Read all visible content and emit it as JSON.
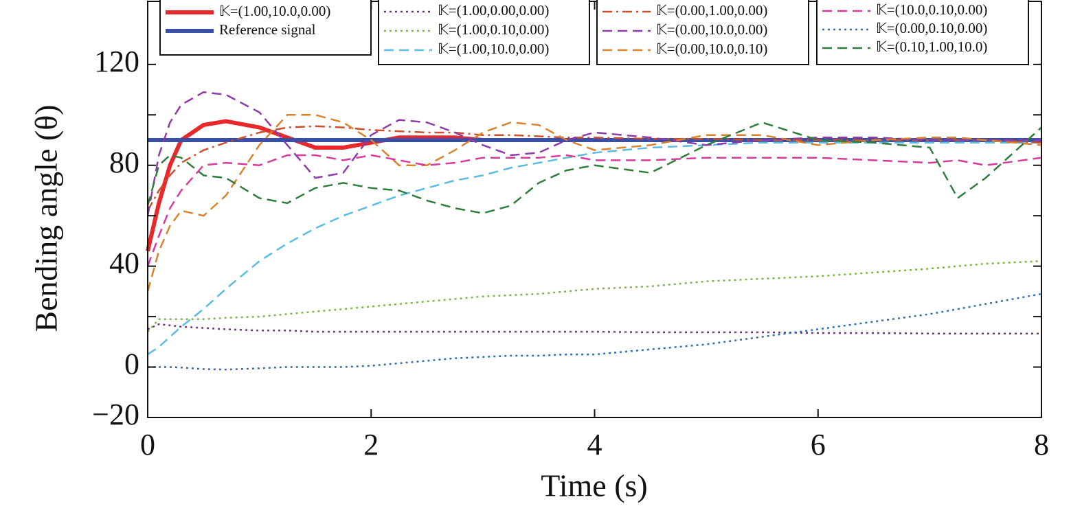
{
  "chart_data": {
    "type": "line",
    "xlabel": "Time (s)",
    "ylabel": "Bending angle (θ)",
    "xlim": [
      0,
      8
    ],
    "ylim": [
      -20,
      145
    ],
    "xticks": [
      0,
      2,
      4,
      6,
      8
    ],
    "yticks": [
      {
        "value": -20,
        "label": "−20"
      },
      0,
      40,
      80,
      120
    ],
    "yminor_ticks": [
      20,
      60,
      100
    ],
    "x": [
      0,
      0.1,
      0.2,
      0.3,
      0.5,
      0.7,
      1,
      1.25,
      1.5,
      1.75,
      2,
      2.25,
      2.5,
      2.75,
      3,
      3.25,
      3.5,
      3.75,
      4,
      4.5,
      5,
      5.5,
      6,
      6.5,
      7,
      7.25,
      7.5,
      8
    ],
    "series": [
      {
        "name": "𝕂=(1.00,10.0,0.00)",
        "color": "#e8282b",
        "style": "solid",
        "linewidth": 6,
        "values": [
          46,
          65,
          80,
          90,
          96,
          97.5,
          95,
          91,
          87,
          87,
          89,
          91,
          91,
          91,
          90,
          90,
          90,
          90,
          90,
          90,
          90,
          90,
          90,
          90,
          90,
          90,
          90,
          90
        ]
      },
      {
        "name": "Reference signal",
        "color": "#3a4fa8",
        "style": "solid",
        "linewidth": 6,
        "values": [
          90,
          90,
          90,
          90,
          90,
          90,
          90,
          90,
          90,
          90,
          90,
          90,
          90,
          90,
          90,
          90,
          90,
          90,
          90,
          90,
          90,
          90,
          90,
          90,
          90,
          90,
          90,
          90
        ]
      },
      {
        "name": "𝕂=(1.00,0.00,0.00)",
        "color": "#7b2d8e",
        "style": "dotted",
        "linewidth": 2.5,
        "values": [
          15,
          17,
          16.5,
          16,
          15.5,
          15,
          14.5,
          14.5,
          14,
          14,
          14,
          14,
          14,
          14,
          14,
          14,
          14,
          14,
          14,
          13.8,
          13.8,
          13.8,
          13.5,
          13.5,
          13.3,
          13.3,
          13.3,
          13.3
        ]
      },
      {
        "name": "𝕂=(1.00,0.10,0.00)",
        "color": "#7ab648",
        "style": "dotted",
        "linewidth": 2.5,
        "values": [
          14,
          19,
          19,
          19,
          19,
          19.5,
          20,
          21,
          22,
          23,
          24,
          25,
          26,
          27,
          28,
          28.5,
          29,
          30,
          31,
          32,
          34,
          35,
          36,
          37.5,
          39,
          40,
          41,
          42
        ]
      },
      {
        "name": "𝕂=(1.00,10.0,0.00)",
        "color": "#5bbbe0",
        "style": "dashed",
        "linewidth": 2.5,
        "values": [
          5,
          8,
          12,
          16,
          23,
          31,
          42,
          49,
          55,
          60,
          64,
          68,
          71,
          74,
          76,
          79,
          81,
          83,
          85,
          87,
          88,
          89,
          89,
          89,
          89,
          89,
          89,
          89
        ]
      },
      {
        "name": "𝕂=(0.00,1.00,0.00)",
        "color": "#c9502a",
        "style": "dashdot",
        "linewidth": 2.5,
        "values": [
          62,
          70,
          76,
          81,
          86,
          89,
          93,
          95,
          95.5,
          95,
          94,
          93.5,
          93,
          93,
          92,
          92,
          91.5,
          91,
          91,
          90.5,
          90.5,
          90,
          90,
          90,
          90,
          90,
          90,
          89
        ]
      },
      {
        "name": "𝕂=(0.00,10.0,0.00)",
        "color": "#8e3aa8",
        "style": "dashed",
        "linewidth": 2.5,
        "values": [
          60,
          84,
          97,
          104,
          109,
          108,
          101,
          88,
          75,
          77,
          92,
          98,
          97,
          93,
          88,
          84,
          85,
          90,
          93,
          91,
          88,
          90,
          91,
          91,
          90,
          90,
          90,
          90
        ]
      },
      {
        "name": "𝕂=(0.00,10.0,0.10)",
        "color": "#d9822b",
        "style": "dashed",
        "linewidth": 2.5,
        "values": [
          30,
          46,
          56,
          62,
          60,
          68,
          88,
          100,
          100,
          97,
          90,
          80,
          80,
          86,
          93,
          97,
          96,
          90,
          86,
          88,
          92,
          92,
          88,
          90,
          91,
          91,
          90,
          88
        ]
      },
      {
        "name": "𝕂=(10.0,0.10,0.00)",
        "color": "#d63a9d",
        "style": "dashed",
        "linewidth": 2.5,
        "values": [
          40,
          52,
          63,
          70,
          80,
          81,
          80,
          84,
          84,
          82,
          84,
          82,
          80,
          81,
          83,
          83,
          83,
          84,
          82,
          82,
          83,
          83,
          83,
          82,
          81,
          82,
          80,
          83
        ]
      },
      {
        "name": "𝕂=(0.00,0.10,0.00)",
        "color": "#2f6db5",
        "style": "dotted",
        "linewidth": 2.5,
        "values": [
          0,
          0,
          0,
          -0.2,
          -0.8,
          -1,
          -0.5,
          0,
          0,
          0,
          0.5,
          1.5,
          2.5,
          3.5,
          4,
          4.5,
          4.5,
          5,
          5,
          7,
          9,
          12,
          15,
          18,
          21,
          23,
          25,
          29
        ]
      },
      {
        "name": "𝕂=(0.10,1.00,10.0)",
        "color": "#2e7d3a",
        "style": "dashed",
        "linewidth": 2.5,
        "values": [
          64,
          80,
          84,
          83,
          76,
          75,
          67,
          65,
          71,
          73,
          71,
          70,
          66,
          63,
          61,
          64,
          73,
          78,
          80,
          77,
          88,
          97,
          90,
          89,
          87,
          67,
          75,
          95
        ]
      }
    ]
  }
}
